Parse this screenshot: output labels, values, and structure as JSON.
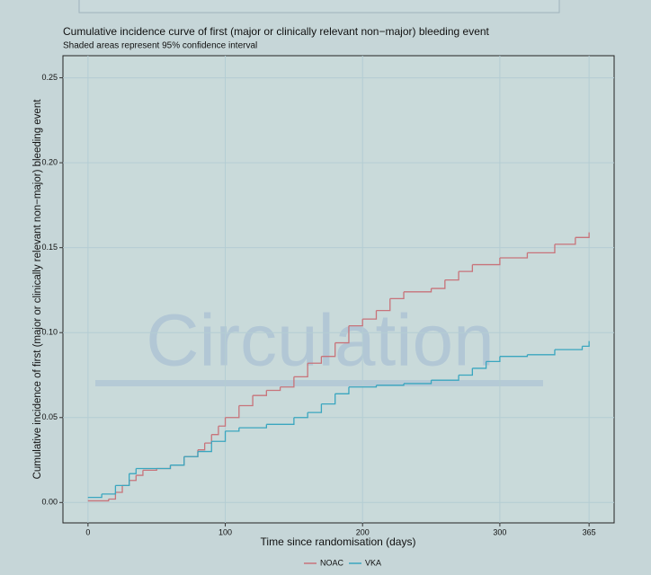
{
  "chart_data": {
    "type": "step",
    "title": "Cumulative incidence curve of first (major or clinically relevant non−major) bleeding event",
    "subtitle": "Shaded areas represent 95% confidence interval",
    "x_label": "Time since randomisation (days)",
    "y_label": "Cumulative incidence of first (major or clinically relevant non−major) bleeding event",
    "watermark": "Circulation",
    "xlim": [
      -18.25,
      383.25
    ],
    "xticks": [
      0,
      100,
      200,
      300,
      365
    ],
    "ylim": [
      -0.012,
      0.263
    ],
    "yticks": [
      {
        "value": 0,
        "label": "0.00"
      },
      {
        "value": 0.05,
        "label": "0.05"
      },
      {
        "value": 0.1,
        "label": "0.10"
      },
      {
        "value": 0.15,
        "label": "0.15"
      },
      {
        "value": 0.2,
        "label": "0.20"
      },
      {
        "value": 0.25,
        "label": "0.25"
      }
    ],
    "grid": true,
    "legend": "bottom",
    "series": [
      {
        "name": "NOAC",
        "color": "#c8737a",
        "x": [
          0,
          15,
          20,
          25,
          30,
          35,
          40,
          50,
          60,
          70,
          80,
          85,
          90,
          95,
          100,
          110,
          120,
          130,
          140,
          150,
          160,
          170,
          180,
          190,
          200,
          210,
          220,
          230,
          250,
          260,
          270,
          280,
          300,
          320,
          340,
          355,
          365
        ],
        "values": [
          0.001,
          0.002,
          0.006,
          0.01,
          0.013,
          0.016,
          0.019,
          0.02,
          0.022,
          0.027,
          0.031,
          0.035,
          0.04,
          0.045,
          0.05,
          0.057,
          0.063,
          0.066,
          0.068,
          0.074,
          0.082,
          0.086,
          0.094,
          0.104,
          0.108,
          0.113,
          0.12,
          0.124,
          0.126,
          0.131,
          0.136,
          0.14,
          0.144,
          0.147,
          0.152,
          0.156,
          0.159
        ]
      },
      {
        "name": "VKA",
        "color": "#3aa6bf",
        "x": [
          0,
          10,
          20,
          30,
          35,
          60,
          70,
          80,
          90,
          100,
          110,
          130,
          150,
          160,
          170,
          180,
          190,
          210,
          230,
          250,
          270,
          280,
          290,
          300,
          320,
          340,
          360,
          365
        ],
        "values": [
          0.003,
          0.005,
          0.01,
          0.017,
          0.02,
          0.022,
          0.027,
          0.03,
          0.036,
          0.042,
          0.044,
          0.046,
          0.05,
          0.053,
          0.058,
          0.064,
          0.068,
          0.069,
          0.07,
          0.072,
          0.075,
          0.079,
          0.083,
          0.086,
          0.087,
          0.09,
          0.092,
          0.095
        ]
      }
    ]
  }
}
